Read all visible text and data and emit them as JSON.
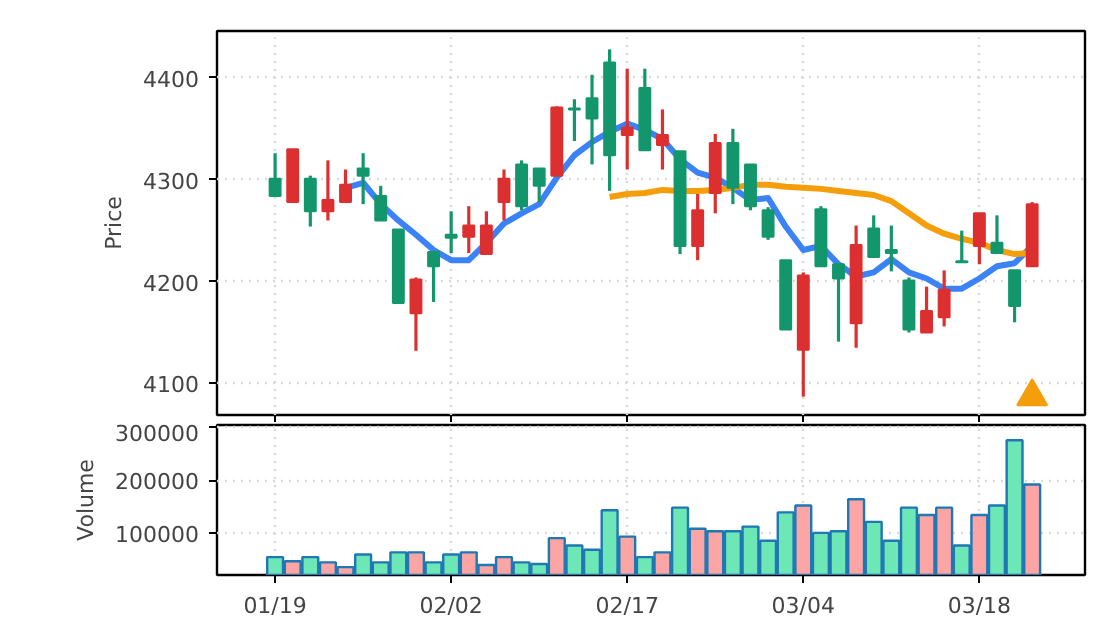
{
  "chart_data": [
    {
      "type": "candlestick",
      "ylabel": "Price",
      "categories": [
        null,
        null,
        null,
        null,
        null,
        null,
        null,
        null,
        null,
        null,
        null,
        null,
        null,
        null,
        null,
        null,
        null,
        null,
        null,
        null,
        null,
        null,
        null,
        null,
        null,
        null,
        null,
        null,
        null,
        null,
        null,
        null,
        null,
        null,
        null,
        null,
        null,
        null,
        null,
        null,
        null,
        null,
        null,
        null
      ],
      "ohlc": [
        [
          4284,
          4326,
          4284,
          4301
        ],
        [
          4330,
          4330,
          4278,
          4278
        ],
        [
          4269,
          4304,
          4254,
          4301
        ],
        [
          4280,
          4319,
          4260,
          4269
        ],
        [
          4295,
          4310,
          4278,
          4278
        ],
        [
          4304,
          4326,
          4276,
          4311
        ],
        [
          4260,
          4294,
          4260,
          4284
        ],
        [
          4179,
          4251,
          4179,
          4251
        ],
        [
          4202,
          4204,
          4132,
          4169
        ],
        [
          4215,
          4229,
          4180,
          4229
        ],
        [
          4243,
          4269,
          4228,
          4246
        ],
        [
          4255,
          4274,
          4228,
          4244
        ],
        [
          4255,
          4269,
          4227,
          4227
        ],
        [
          4301,
          4310,
          4260,
          4278
        ],
        [
          4274,
          4319,
          4270,
          4315
        ],
        [
          4294,
          4311,
          4278,
          4311
        ],
        [
          4371,
          4372,
          4304,
          4304
        ],
        [
          4369,
          4379,
          4338,
          4370
        ],
        [
          4360,
          4403,
          4315,
          4380
        ],
        [
          4324,
          4428,
          4289,
          4415
        ],
        [
          4351,
          4409,
          4310,
          4344
        ],
        [
          4329,
          4409,
          4329,
          4390
        ],
        [
          4344,
          4369,
          4310,
          4334
        ],
        [
          4235,
          4328,
          4227,
          4328
        ],
        [
          4270,
          4286,
          4221,
          4235
        ],
        [
          4336,
          4345,
          4267,
          4287
        ],
        [
          4292,
          4350,
          4276,
          4336
        ],
        [
          4274,
          4315,
          4270,
          4315
        ],
        [
          4244,
          4273,
          4241,
          4270
        ],
        [
          4153,
          4221,
          4153,
          4221
        ],
        [
          4206,
          4209,
          4087,
          4133
        ],
        [
          4215,
          4274,
          4215,
          4271
        ],
        [
          4203,
          4217,
          4141,
          4217
        ],
        [
          4236,
          4255,
          4135,
          4159
        ],
        [
          4224,
          4265,
          4224,
          4252
        ],
        [
          4228,
          4255,
          4210,
          4231
        ],
        [
          4153,
          4204,
          4150,
          4201
        ],
        [
          4171,
          4195,
          4150,
          4150
        ],
        [
          4192,
          4211,
          4156,
          4165
        ],
        [
          4219,
          4250,
          4219,
          4220
        ],
        [
          4267,
          4267,
          4217,
          4235
        ],
        [
          4228,
          4265,
          4228,
          4238
        ],
        [
          4176,
          4211,
          4160,
          4211
        ],
        [
          4276,
          4278,
          4215,
          4215
        ]
      ],
      "colors": [
        "#13966c",
        "#dc2f2f",
        "#13966c",
        "#dc2f2f",
        "#dc2f2f",
        "#13966c",
        "#13966c",
        "#13966c",
        "#dc2f2f",
        "#13966c",
        "#13966c",
        "#dc2f2f",
        "#dc2f2f",
        "#dc2f2f",
        "#13966c",
        "#13966c",
        "#dc2f2f",
        "#13966c",
        "#13966c",
        "#13966c",
        "#dc2f2f",
        "#13966c",
        "#dc2f2f",
        "#13966c",
        "#dc2f2f",
        "#dc2f2f",
        "#13966c",
        "#13966c",
        "#13966c",
        "#13966c",
        "#dc2f2f",
        "#13966c",
        "#13966c",
        "#dc2f2f",
        "#13966c",
        "#13966c",
        "#13966c",
        "#dc2f2f",
        "#dc2f2f",
        "#13966c",
        "#dc2f2f",
        "#13966c",
        "#13966c",
        "#dc2f2f"
      ],
      "series": [
        {
          "type": "line",
          "color": "#3b82f6",
          "values": [
            null,
            null,
            null,
            null,
            4292,
            4297,
            4276,
            4260,
            4246,
            4231,
            4221,
            4221,
            4238,
            4257,
            4267,
            4276,
            4302,
            4324,
            4337,
            4347,
            4355,
            4349,
            4340,
            4320,
            4307,
            4302,
            4292,
            4280,
            4282,
            4254,
            4231,
            4235,
            4217,
            4205,
            4209,
            4222,
            4209,
            4203,
            4193,
            4193,
            4203,
            4215,
            4218,
            4235
          ]
        },
        {
          "type": "line",
          "color": "#f59e0b",
          "values": [
            null,
            null,
            null,
            null,
            null,
            null,
            null,
            null,
            null,
            null,
            null,
            null,
            null,
            null,
            null,
            null,
            null,
            null,
            null,
            4283,
            4286,
            4287,
            4290,
            4289,
            4289,
            4290,
            4292,
            4295,
            4295,
            4293,
            4292,
            4291,
            4289,
            4287,
            4285,
            4279,
            4267,
            4255,
            4247,
            4242,
            4238,
            4231,
            4227,
            4228
          ]
        },
        {
          "type": "scatter",
          "marker": "triangle",
          "color": "#f59e0b",
          "values": [
            null,
            null,
            null,
            null,
            null,
            null,
            null,
            null,
            null,
            null,
            null,
            null,
            null,
            null,
            null,
            null,
            null,
            null,
            null,
            null,
            null,
            null,
            null,
            null,
            null,
            null,
            null,
            null,
            null,
            null,
            null,
            null,
            null,
            null,
            null,
            null,
            null,
            null,
            null,
            null,
            null,
            null,
            null,
            4087
          ]
        }
      ],
      "ylim": [
        4069,
        4446
      ],
      "yticks": [
        4100,
        4200,
        4300,
        4400
      ],
      "grid": true
    },
    {
      "type": "bar",
      "ylabel": "Volume",
      "categories": [
        "01/19",
        null,
        null,
        null,
        null,
        null,
        null,
        null,
        null,
        null,
        "02/02",
        null,
        null,
        null,
        null,
        null,
        null,
        null,
        null,
        null,
        "02/17",
        null,
        null,
        null,
        null,
        null,
        null,
        null,
        null,
        null,
        "03/04",
        null,
        null,
        null,
        null,
        null,
        null,
        null,
        null,
        null,
        "03/18",
        null,
        null,
        null
      ],
      "values": [
        54000,
        46000,
        54000,
        44000,
        35000,
        59000,
        44000,
        63000,
        63000,
        44000,
        59000,
        63000,
        39000,
        54000,
        44000,
        41000,
        90000,
        76000,
        68000,
        143000,
        93000,
        54000,
        63000,
        148000,
        108000,
        103000,
        103000,
        112000,
        85000,
        139000,
        152000,
        100000,
        103000,
        164000,
        121000,
        85000,
        148000,
        134000,
        148000,
        76000,
        134000,
        152000,
        276000,
        192000
      ],
      "colors": [
        "#6ee7b7",
        "#fca5a5",
        "#6ee7b7",
        "#fca5a5",
        "#fca5a5",
        "#6ee7b7",
        "#6ee7b7",
        "#6ee7b7",
        "#fca5a5",
        "#6ee7b7",
        "#6ee7b7",
        "#fca5a5",
        "#fca5a5",
        "#fca5a5",
        "#6ee7b7",
        "#6ee7b7",
        "#fca5a5",
        "#6ee7b7",
        "#6ee7b7",
        "#6ee7b7",
        "#fca5a5",
        "#6ee7b7",
        "#fca5a5",
        "#6ee7b7",
        "#fca5a5",
        "#fca5a5",
        "#6ee7b7",
        "#6ee7b7",
        "#6ee7b7",
        "#6ee7b7",
        "#fca5a5",
        "#6ee7b7",
        "#6ee7b7",
        "#fca5a5",
        "#6ee7b7",
        "#6ee7b7",
        "#6ee7b7",
        "#fca5a5",
        "#fca5a5",
        "#6ee7b7",
        "#fca5a5",
        "#6ee7b7",
        "#6ee7b7",
        "#fca5a5"
      ],
      "ylim": [
        20000,
        305000
      ],
      "yticks": [
        100000,
        200000,
        300000
      ],
      "grid": true
    }
  ]
}
